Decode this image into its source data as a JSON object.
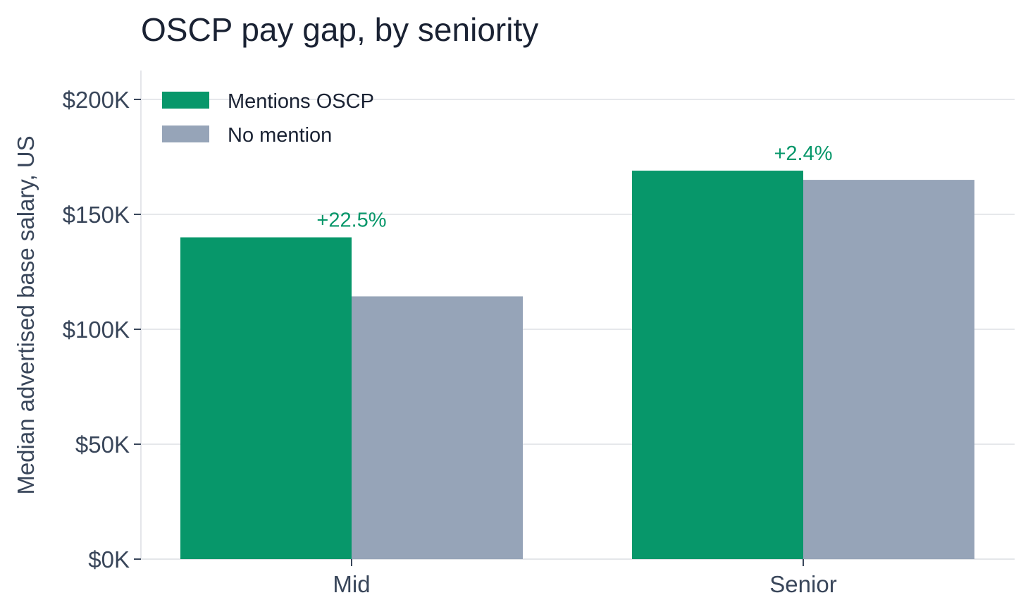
{
  "chart_data": {
    "type": "bar",
    "title": "OSCP pay gap, by seniority",
    "xlabel": "",
    "ylabel": "Median advertised base salary, US",
    "categories": [
      "Mid",
      "Senior"
    ],
    "series": [
      {
        "name": "Mentions OSCP",
        "color": "#07976a",
        "values": [
          140000,
          169000
        ]
      },
      {
        "name": "No mention",
        "color": "#96a4b8",
        "values": [
          114300,
          165000
        ]
      }
    ],
    "annotations": [
      "+22.5%",
      "+2.4%"
    ],
    "annotation_color": "#07976a",
    "ylim": [
      0,
      213000
    ],
    "yticks": [
      0,
      50000,
      100000,
      150000,
      200000
    ],
    "ytick_labels": [
      "$0K",
      "$50K",
      "$100K",
      "$150K",
      "$200K"
    ],
    "grid": true,
    "legend_position": "top-left"
  }
}
